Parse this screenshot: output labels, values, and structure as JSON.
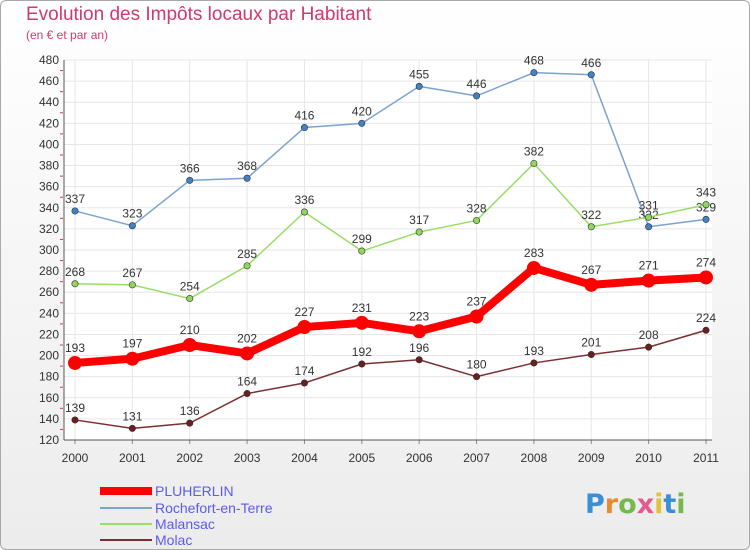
{
  "header": {
    "title": "Evolution des Impôts locaux par Habitant",
    "subtitle": "(en € et par an)"
  },
  "logo": {
    "text": "Proxiti",
    "letters": [
      {
        "ch": "P",
        "color": "#3a8fd6"
      },
      {
        "ch": "r",
        "color": "#e98a2c"
      },
      {
        "ch": "o",
        "color": "#77b84a"
      },
      {
        "ch": "x",
        "color": "#e25a8e"
      },
      {
        "ch": "i",
        "color": "#e3c23a"
      },
      {
        "ch": "t",
        "color": "#3a8fd6"
      },
      {
        "ch": "i",
        "color": "#77b84a"
      }
    ]
  },
  "chart_data": {
    "type": "line",
    "categories": [
      "2000",
      "2001",
      "2002",
      "2003",
      "2004",
      "2005",
      "2006",
      "2007",
      "2008",
      "2009",
      "2010",
      "2011"
    ],
    "ylim": [
      120,
      480
    ],
    "yticks": [
      120,
      140,
      160,
      180,
      200,
      220,
      240,
      260,
      280,
      300,
      320,
      340,
      360,
      380,
      400,
      420,
      440,
      460,
      480
    ],
    "grid": true,
    "legend_position": "bottom-left",
    "series": [
      {
        "name": "PLUHERLIN",
        "color": "#ff0000",
        "marker": "#ff0000",
        "emphasis": true,
        "values": [
          193,
          197,
          210,
          202,
          227,
          231,
          223,
          237,
          283,
          267,
          271,
          274
        ]
      },
      {
        "name": "Rochefort-en-Terre",
        "color": "#7ba3d1",
        "marker": "#4182c6",
        "emphasis": false,
        "values": [
          337,
          323,
          366,
          368,
          416,
          420,
          455,
          446,
          468,
          466,
          322,
          329
        ]
      },
      {
        "name": "Malansac",
        "color": "#99dd66",
        "marker": "#8fd65a",
        "emphasis": false,
        "values": [
          268,
          267,
          254,
          285,
          336,
          299,
          317,
          328,
          382,
          322,
          331,
          343
        ]
      },
      {
        "name": "Molac",
        "color": "#7a3030",
        "marker": "#6b1e1e",
        "emphasis": false,
        "values": [
          139,
          131,
          136,
          164,
          174,
          192,
          196,
          180,
          193,
          201,
          208,
          224
        ]
      }
    ]
  }
}
